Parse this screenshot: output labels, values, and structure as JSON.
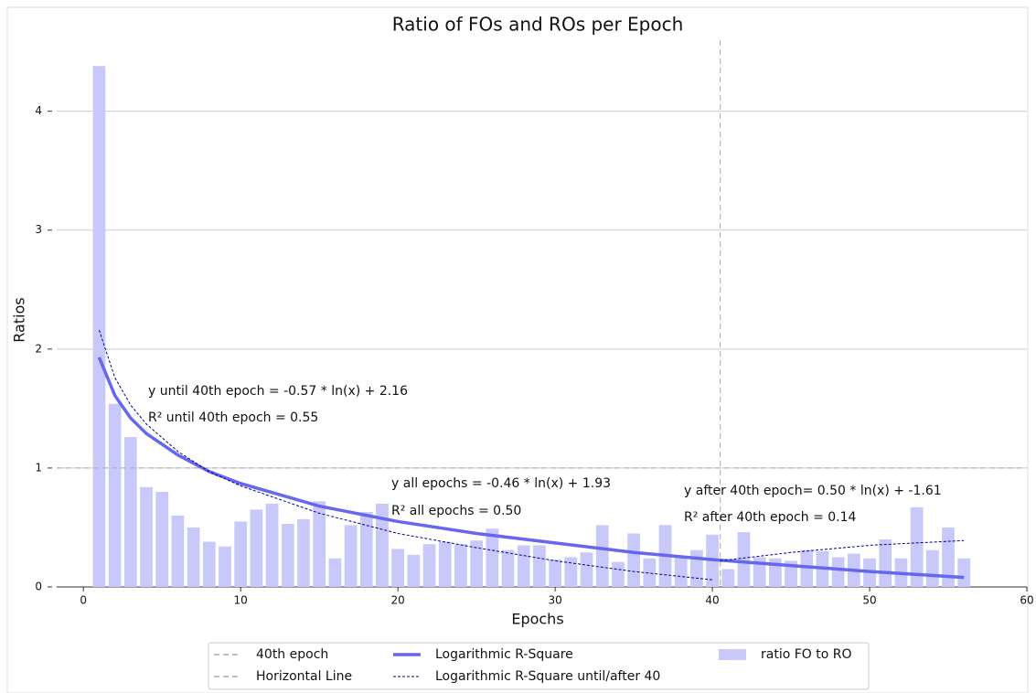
{
  "chart_data": {
    "type": "bar",
    "title": "Ratio of FOs and ROs per Epoch",
    "x_label": "Epochs",
    "y_label": "Ratios",
    "xlim": [
      -1.7,
      60
    ],
    "ylim": [
      0,
      4.72
    ],
    "xticks": [
      0,
      10,
      20,
      30,
      40,
      50,
      60
    ],
    "yticks": [
      0,
      1,
      2,
      3,
      4
    ],
    "grid": true,
    "legend": "bottom",
    "bars": {
      "name": "ratio FO to RO",
      "color": "#c8c8fa",
      "x": [
        1,
        2,
        3,
        4,
        5,
        6,
        7,
        8,
        9,
        10,
        11,
        12,
        13,
        14,
        15,
        16,
        17,
        18,
        19,
        20,
        21,
        22,
        23,
        24,
        25,
        26,
        27,
        28,
        29,
        30,
        31,
        32,
        33,
        34,
        35,
        36,
        37,
        38,
        39,
        40,
        41,
        42,
        43,
        44,
        45,
        46,
        47,
        48,
        49,
        50,
        51,
        52,
        53,
        54,
        55,
        56
      ],
      "values": [
        4.38,
        1.54,
        1.26,
        0.84,
        0.8,
        0.6,
        0.5,
        0.38,
        0.34,
        0.55,
        0.65,
        0.7,
        0.53,
        0.57,
        0.72,
        0.24,
        0.52,
        0.63,
        0.7,
        0.32,
        0.27,
        0.36,
        0.38,
        0.36,
        0.39,
        0.49,
        0.31,
        0.35,
        0.35,
        0.23,
        0.25,
        0.29,
        0.52,
        0.21,
        0.45,
        0.24,
        0.52,
        0.25,
        0.31,
        0.44,
        0.15,
        0.46,
        0.25,
        0.24,
        0.22,
        0.31,
        0.3,
        0.25,
        0.28,
        0.24,
        0.4,
        0.24,
        0.67,
        0.31,
        0.5,
        0.24
      ]
    },
    "series": [
      {
        "name": "Logarithmic R-Square",
        "color": "#6666ee",
        "style": "solid",
        "x": [
          1,
          2,
          3,
          4,
          6,
          8,
          10,
          15,
          20,
          25,
          30,
          35,
          40,
          45,
          50,
          56
        ],
        "values": [
          1.93,
          1.61,
          1.42,
          1.29,
          1.11,
          0.97,
          0.87,
          0.68,
          0.55,
          0.45,
          0.37,
          0.29,
          0.23,
          0.18,
          0.13,
          0.08
        ]
      },
      {
        "name": "Logarithmic R-Square until/after 40",
        "color": "#00008b",
        "style": "dashed",
        "x": [
          1,
          2,
          3,
          4,
          6,
          8,
          10,
          15,
          20,
          25,
          30,
          35,
          40
        ],
        "values": [
          2.16,
          1.76,
          1.53,
          1.37,
          1.14,
          0.97,
          0.85,
          0.62,
          0.45,
          0.33,
          0.22,
          0.13,
          0.06
        ]
      },
      {
        "color": "#00008b",
        "style": "dashed",
        "x": [
          40.5,
          45,
          50,
          56
        ],
        "values": [
          0.22,
          0.29,
          0.35,
          0.39
        ]
      }
    ],
    "reference_lines": [
      {
        "name": "40th epoch",
        "axis": "x",
        "value": 40.5,
        "color": "#aaaaaa"
      },
      {
        "name": "Horizontal Line",
        "axis": "y",
        "value": 1,
        "color": "#aaaaaa"
      }
    ],
    "annotations": [
      "y until 40th epoch = -0.57 * ln(x) + 2.16",
      "R² until 40th epoch = 0.55",
      "y all epochs = -0.46 * ln(x) + 1.93",
      "R² all epochs = 0.50",
      "y after 40th epoch= 0.50 * ln(x) + -1.61",
      "R² after 40th epoch = 0.14"
    ]
  }
}
